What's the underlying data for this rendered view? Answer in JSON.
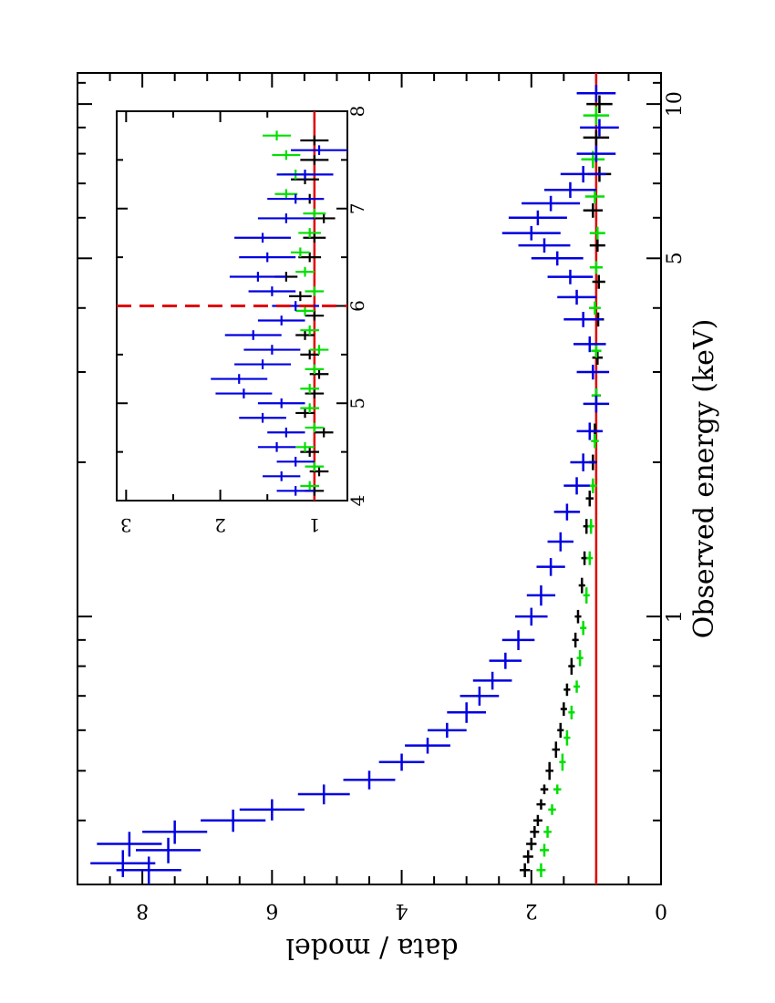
{
  "chart_data": [
    {
      "type": "scatter",
      "panel": "main",
      "orientation": "rotated 90 degrees clockwise (x axis runs top-to-bottom on the page)",
      "xlabel": "Observed energy (keV)",
      "ylabel": "data / model",
      "xscale": "log",
      "xlim": [
        0.3,
        11.5
      ],
      "ylim": [
        0,
        9
      ],
      "x_tick_labels": [
        "1",
        "5",
        "10"
      ],
      "y_tick_labels": [
        "0",
        "2",
        "4",
        "6",
        "8"
      ],
      "reference_line": {
        "y": 1.0,
        "color": "#e00000"
      },
      "series": [
        {
          "name": "black",
          "color": "#000000",
          "points": [
            [
              0.32,
              2.1,
              0.01,
              0.08
            ],
            [
              0.34,
              2.05,
              0.01,
              0.08
            ],
            [
              0.36,
              2.0,
              0.01,
              0.08
            ],
            [
              0.38,
              1.95,
              0.01,
              0.07
            ],
            [
              0.4,
              1.9,
              0.01,
              0.07
            ],
            [
              0.43,
              1.85,
              0.01,
              0.07
            ],
            [
              0.46,
              1.8,
              0.01,
              0.06
            ],
            [
              0.5,
              1.72,
              0.02,
              0.06
            ],
            [
              0.55,
              1.62,
              0.02,
              0.06
            ],
            [
              0.6,
              1.55,
              0.02,
              0.05
            ],
            [
              0.66,
              1.5,
              0.02,
              0.05
            ],
            [
              0.72,
              1.45,
              0.02,
              0.05
            ],
            [
              0.8,
              1.38,
              0.03,
              0.05
            ],
            [
              0.9,
              1.32,
              0.03,
              0.05
            ],
            [
              1.0,
              1.28,
              0.03,
              0.05
            ],
            [
              1.15,
              1.22,
              0.04,
              0.05
            ],
            [
              1.3,
              1.18,
              0.04,
              0.05
            ],
            [
              1.5,
              1.15,
              0.05,
              0.05
            ],
            [
              1.7,
              1.1,
              0.06,
              0.06
            ],
            [
              2.0,
              1.05,
              0.07,
              0.06
            ],
            [
              2.3,
              1.02,
              0.08,
              0.07
            ],
            [
              2.7,
              1.0,
              0.09,
              0.07
            ],
            [
              3.2,
              0.98,
              0.1,
              0.08
            ],
            [
              3.8,
              0.97,
              0.12,
              0.09
            ],
            [
              4.5,
              0.96,
              0.14,
              0.1
            ],
            [
              5.3,
              0.98,
              0.15,
              0.12
            ],
            [
              6.2,
              1.05,
              0.2,
              0.15
            ],
            [
              7.3,
              0.95,
              0.25,
              0.18
            ],
            [
              8.6,
              1.0,
              0.3,
              0.2
            ],
            [
              10.0,
              0.95,
              0.4,
              0.2
            ]
          ]
        },
        {
          "name": "green",
          "color": "#00e000",
          "points": [
            [
              0.32,
              1.85,
              0.01,
              0.07
            ],
            [
              0.35,
              1.8,
              0.01,
              0.07
            ],
            [
              0.38,
              1.75,
              0.01,
              0.06
            ],
            [
              0.42,
              1.68,
              0.01,
              0.06
            ],
            [
              0.46,
              1.6,
              0.01,
              0.06
            ],
            [
              0.52,
              1.52,
              0.02,
              0.05
            ],
            [
              0.58,
              1.45,
              0.02,
              0.05
            ],
            [
              0.65,
              1.38,
              0.02,
              0.05
            ],
            [
              0.73,
              1.3,
              0.02,
              0.05
            ],
            [
              0.83,
              1.25,
              0.03,
              0.05
            ],
            [
              0.95,
              1.2,
              0.03,
              0.05
            ],
            [
              1.1,
              1.15,
              0.04,
              0.05
            ],
            [
              1.3,
              1.1,
              0.04,
              0.05
            ],
            [
              1.5,
              1.08,
              0.05,
              0.05
            ],
            [
              1.8,
              1.05,
              0.06,
              0.06
            ],
            [
              2.2,
              1.02,
              0.07,
              0.06
            ],
            [
              2.7,
              1.0,
              0.09,
              0.07
            ],
            [
              3.3,
              1.0,
              0.1,
              0.08
            ],
            [
              4.0,
              1.02,
              0.12,
              0.09
            ],
            [
              4.8,
              1.0,
              0.14,
              0.1
            ],
            [
              5.6,
              0.98,
              0.16,
              0.12
            ],
            [
              6.6,
              1.02,
              0.2,
              0.15
            ],
            [
              7.8,
              1.05,
              0.3,
              0.18
            ],
            [
              9.5,
              1.0,
              0.4,
              0.2
            ]
          ]
        },
        {
          "name": "blue",
          "color": "#0000e0",
          "points": [
            [
              0.32,
              7.9,
              0.02,
              0.5
            ],
            [
              0.33,
              8.3,
              0.02,
              0.5
            ],
            [
              0.35,
              7.6,
              0.02,
              0.5
            ],
            [
              0.36,
              8.2,
              0.02,
              0.5
            ],
            [
              0.38,
              7.5,
              0.02,
              0.5
            ],
            [
              0.4,
              6.6,
              0.02,
              0.5
            ],
            [
              0.42,
              6.0,
              0.02,
              0.5
            ],
            [
              0.45,
              5.2,
              0.02,
              0.4
            ],
            [
              0.48,
              4.5,
              0.02,
              0.4
            ],
            [
              0.52,
              4.0,
              0.02,
              0.35
            ],
            [
              0.56,
              3.6,
              0.02,
              0.35
            ],
            [
              0.6,
              3.3,
              0.02,
              0.3
            ],
            [
              0.65,
              3.0,
              0.03,
              0.3
            ],
            [
              0.7,
              2.8,
              0.03,
              0.3
            ],
            [
              0.75,
              2.6,
              0.03,
              0.3
            ],
            [
              0.82,
              2.4,
              0.03,
              0.25
            ],
            [
              0.9,
              2.2,
              0.04,
              0.25
            ],
            [
              1.0,
              2.0,
              0.04,
              0.25
            ],
            [
              1.1,
              1.85,
              0.05,
              0.22
            ],
            [
              1.25,
              1.7,
              0.05,
              0.22
            ],
            [
              1.4,
              1.55,
              0.06,
              0.2
            ],
            [
              1.6,
              1.45,
              0.06,
              0.2
            ],
            [
              1.8,
              1.3,
              0.07,
              0.2
            ],
            [
              2.0,
              1.2,
              0.08,
              0.2
            ],
            [
              2.3,
              1.1,
              0.09,
              0.2
            ],
            [
              2.6,
              1.0,
              0.1,
              0.2
            ],
            [
              3.0,
              1.05,
              0.1,
              0.25
            ],
            [
              3.4,
              1.1,
              0.12,
              0.25
            ],
            [
              3.8,
              1.2,
              0.13,
              0.3
            ],
            [
              4.2,
              1.3,
              0.14,
              0.3
            ],
            [
              4.6,
              1.4,
              0.15,
              0.35
            ],
            [
              5.0,
              1.6,
              0.16,
              0.4
            ],
            [
              5.3,
              1.8,
              0.17,
              0.4
            ],
            [
              5.6,
              2.0,
              0.18,
              0.45
            ],
            [
              6.0,
              1.9,
              0.2,
              0.45
            ],
            [
              6.4,
              1.7,
              0.22,
              0.45
            ],
            [
              6.8,
              1.4,
              0.24,
              0.4
            ],
            [
              7.3,
              1.2,
              0.27,
              0.35
            ],
            [
              8.0,
              1.0,
              0.3,
              0.3
            ],
            [
              9.0,
              0.95,
              0.35,
              0.3
            ],
            [
              10.5,
              1.0,
              0.4,
              0.3
            ]
          ]
        }
      ]
    },
    {
      "type": "scatter",
      "panel": "inset",
      "orientation": "rotated 90 degrees clockwise",
      "xlim": [
        4,
        8
      ],
      "ylim": [
        0.65,
        3.1
      ],
      "x_tick_labels": [
        "4",
        "5",
        "6",
        "7",
        "8"
      ],
      "y_tick_labels": [
        "1",
        "2",
        "3"
      ],
      "reference_line": {
        "y": 1.0,
        "color": "#e00000"
      },
      "marker_line": {
        "x": 6.0,
        "color": "#e00000",
        "style": "dashed"
      },
      "series": [
        {
          "name": "black",
          "color": "#000000",
          "points": [
            [
              4.1,
              1.0,
              0.05,
              0.1
            ],
            [
              4.3,
              0.95,
              0.05,
              0.1
            ],
            [
              4.5,
              1.05,
              0.05,
              0.1
            ],
            [
              4.7,
              0.9,
              0.05,
              0.1
            ],
            [
              4.9,
              1.1,
              0.05,
              0.1
            ],
            [
              5.1,
              1.0,
              0.05,
              0.1
            ],
            [
              5.3,
              0.95,
              0.05,
              0.1
            ],
            [
              5.5,
              1.05,
              0.05,
              0.1
            ],
            [
              5.7,
              1.1,
              0.05,
              0.1
            ],
            [
              5.9,
              1.0,
              0.05,
              0.1
            ],
            [
              6.1,
              1.15,
              0.05,
              0.12
            ],
            [
              6.3,
              1.3,
              0.05,
              0.12
            ],
            [
              6.5,
              1.05,
              0.05,
              0.12
            ],
            [
              6.7,
              1.0,
              0.05,
              0.12
            ],
            [
              6.9,
              0.9,
              0.05,
              0.12
            ],
            [
              7.1,
              1.05,
              0.05,
              0.15
            ],
            [
              7.3,
              1.1,
              0.05,
              0.15
            ],
            [
              7.5,
              1.0,
              0.05,
              0.15
            ],
            [
              7.7,
              1.0,
              0.05,
              0.15
            ]
          ]
        },
        {
          "name": "green",
          "color": "#00e000",
          "points": [
            [
              4.15,
              1.05,
              0.05,
              0.1
            ],
            [
              4.35,
              1.0,
              0.05,
              0.1
            ],
            [
              4.55,
              1.1,
              0.05,
              0.1
            ],
            [
              4.75,
              1.0,
              0.05,
              0.1
            ],
            [
              4.95,
              1.05,
              0.05,
              0.1
            ],
            [
              5.15,
              1.05,
              0.05,
              0.1
            ],
            [
              5.35,
              1.0,
              0.05,
              0.1
            ],
            [
              5.55,
              0.95,
              0.05,
              0.1
            ],
            [
              5.75,
              1.05,
              0.05,
              0.1
            ],
            [
              5.95,
              1.1,
              0.05,
              0.1
            ],
            [
              6.15,
              1.0,
              0.05,
              0.1
            ],
            [
              6.35,
              1.1,
              0.05,
              0.1
            ],
            [
              6.55,
              1.15,
              0.05,
              0.1
            ],
            [
              6.75,
              1.05,
              0.05,
              0.12
            ],
            [
              6.95,
              1.0,
              0.05,
              0.12
            ],
            [
              7.15,
              1.3,
              0.05,
              0.12
            ],
            [
              7.35,
              1.2,
              0.05,
              0.15
            ],
            [
              7.55,
              1.3,
              0.05,
              0.15
            ],
            [
              7.75,
              1.4,
              0.05,
              0.15
            ]
          ]
        },
        {
          "name": "blue",
          "color": "#0000e0",
          "points": [
            [
              4.1,
              1.2,
              0.05,
              0.2
            ],
            [
              4.25,
              1.35,
              0.05,
              0.2
            ],
            [
              4.4,
              1.2,
              0.05,
              0.2
            ],
            [
              4.55,
              1.4,
              0.05,
              0.2
            ],
            [
              4.7,
              1.3,
              0.05,
              0.2
            ],
            [
              4.85,
              1.55,
              0.05,
              0.25
            ],
            [
              5.0,
              1.35,
              0.05,
              0.25
            ],
            [
              5.1,
              1.75,
              0.05,
              0.3
            ],
            [
              5.25,
              1.8,
              0.05,
              0.3
            ],
            [
              5.4,
              1.55,
              0.05,
              0.3
            ],
            [
              5.55,
              1.45,
              0.05,
              0.3
            ],
            [
              5.7,
              1.65,
              0.05,
              0.3
            ],
            [
              5.85,
              1.35,
              0.05,
              0.25
            ],
            [
              6.0,
              1.2,
              0.05,
              0.25
            ],
            [
              6.15,
              1.45,
              0.05,
              0.25
            ],
            [
              6.3,
              1.6,
              0.05,
              0.3
            ],
            [
              6.5,
              1.5,
              0.05,
              0.3
            ],
            [
              6.7,
              1.55,
              0.05,
              0.3
            ],
            [
              6.9,
              1.3,
              0.05,
              0.3
            ],
            [
              7.1,
              1.2,
              0.05,
              0.3
            ],
            [
              7.35,
              1.1,
              0.05,
              0.3
            ],
            [
              7.6,
              0.95,
              0.05,
              0.3
            ]
          ]
        }
      ]
    }
  ]
}
